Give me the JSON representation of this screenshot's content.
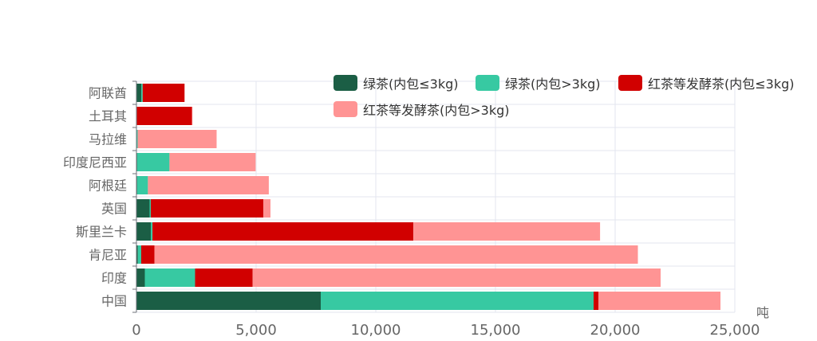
{
  "chart_data": {
    "type": "bar",
    "orientation": "horizontal",
    "stacked": true,
    "categories": [
      "中国",
      "印度",
      "肯尼亚",
      "斯里兰卡",
      "英国",
      "阿根廷",
      "印度尼西亚",
      "马拉维",
      "土耳其",
      "阿联酋"
    ],
    "series": [
      {
        "name": "绿茶(内包≤3kg)",
        "color": "#1b5e45",
        "values": [
          7700,
          350,
          60,
          600,
          550,
          30,
          30,
          0,
          0,
          200
        ]
      },
      {
        "name": "绿茶(内包>3kg)",
        "color": "#37c9a2",
        "values": [
          11400,
          2100,
          140,
          70,
          50,
          450,
          1350,
          50,
          20,
          60
        ]
      },
      {
        "name": "红茶等发酵茶(内包≤3kg)",
        "color": "#d10000",
        "values": [
          200,
          2400,
          550,
          10900,
          4700,
          0,
          0,
          0,
          2300,
          1750
        ]
      },
      {
        "name": "红茶等发酵茶(内包>3kg)",
        "color": "#ff9494",
        "values": [
          5100,
          17050,
          20200,
          7800,
          300,
          5050,
          3600,
          3300,
          20,
          0
        ]
      }
    ],
    "xlim": [
      0,
      25000
    ],
    "x_ticks": [
      "0",
      "5,000",
      "10,000",
      "15,000",
      "20,000",
      "25,000"
    ],
    "unit": "吨",
    "grid": true,
    "legend_position": "top-right"
  }
}
